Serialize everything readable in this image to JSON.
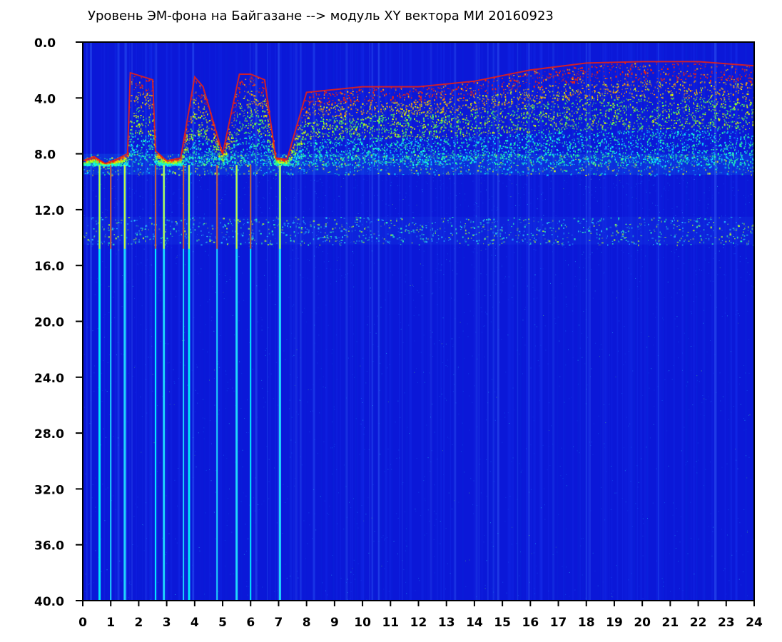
{
  "chart_data": {
    "type": "heatmap",
    "title": "Уровень ЭМ-фона на Байгазане  -->  модуль XY вектора МИ  20160923",
    "xlabel": "",
    "ylabel": "",
    "xlim": [
      0,
      24
    ],
    "ylim": [
      0,
      40
    ],
    "y_axis_inverted": true,
    "x_ticks": [
      "0",
      "1",
      "2",
      "3",
      "4",
      "5",
      "6",
      "7",
      "8",
      "9",
      "10",
      "11",
      "12",
      "13",
      "14",
      "15",
      "16",
      "17",
      "18",
      "19",
      "20",
      "21",
      "22",
      "23",
      "24"
    ],
    "y_ticks": [
      "0.0",
      "4.0",
      "8.0",
      "12.0",
      "16.0",
      "20.0",
      "24.0",
      "28.0",
      "32.0",
      "36.0",
      "40.0"
    ],
    "grid": false,
    "legend": "none",
    "colorscale": [
      "#0a1fd6",
      "#1436f0",
      "#12a8ff",
      "#00f2ff",
      "#28ff7a",
      "#b8ff00",
      "#ffea00",
      "#ff2600"
    ],
    "background_color": "#0000b4",
    "upper_envelope": [
      {
        "x": 0.0,
        "y": 8.5
      },
      {
        "x": 0.4,
        "y": 8.2
      },
      {
        "x": 0.8,
        "y": 8.7
      },
      {
        "x": 1.2,
        "y": 8.4
      },
      {
        "x": 1.6,
        "y": 8.0
      },
      {
        "x": 1.7,
        "y": 2.2
      },
      {
        "x": 2.5,
        "y": 2.7
      },
      {
        "x": 2.6,
        "y": 7.8
      },
      {
        "x": 3.0,
        "y": 8.5
      },
      {
        "x": 3.5,
        "y": 8.3
      },
      {
        "x": 4.0,
        "y": 2.5
      },
      {
        "x": 4.3,
        "y": 3.2
      },
      {
        "x": 5.0,
        "y": 8.0
      },
      {
        "x": 5.6,
        "y": 2.3
      },
      {
        "x": 6.0,
        "y": 2.3
      },
      {
        "x": 6.5,
        "y": 2.7
      },
      {
        "x": 6.9,
        "y": 8.3
      },
      {
        "x": 7.3,
        "y": 8.4
      },
      {
        "x": 8.0,
        "y": 3.6
      },
      {
        "x": 10.0,
        "y": 3.2
      },
      {
        "x": 12.0,
        "y": 3.2
      },
      {
        "x": 14.0,
        "y": 2.8
      },
      {
        "x": 15.0,
        "y": 2.4
      },
      {
        "x": 16.0,
        "y": 2.0
      },
      {
        "x": 18.0,
        "y": 1.5
      },
      {
        "x": 20.0,
        "y": 1.4
      },
      {
        "x": 22.0,
        "y": 1.4
      },
      {
        "x": 24.0,
        "y": 1.7
      }
    ],
    "notable_bands": [
      {
        "name": "dense-band",
        "y_from": 8.0,
        "y_to": 9.5
      },
      {
        "name": "secondary-band",
        "y_from": 12.5,
        "y_to": 14.5
      }
    ],
    "notable_spikes": [
      {
        "x": 0.6
      },
      {
        "x": 1.0
      },
      {
        "x": 1.5
      },
      {
        "x": 2.6
      },
      {
        "x": 2.9
      },
      {
        "x": 3.6
      },
      {
        "x": 3.8
      },
      {
        "x": 4.8
      },
      {
        "x": 5.5
      },
      {
        "x": 6.0
      },
      {
        "x": 7.05
      }
    ]
  }
}
